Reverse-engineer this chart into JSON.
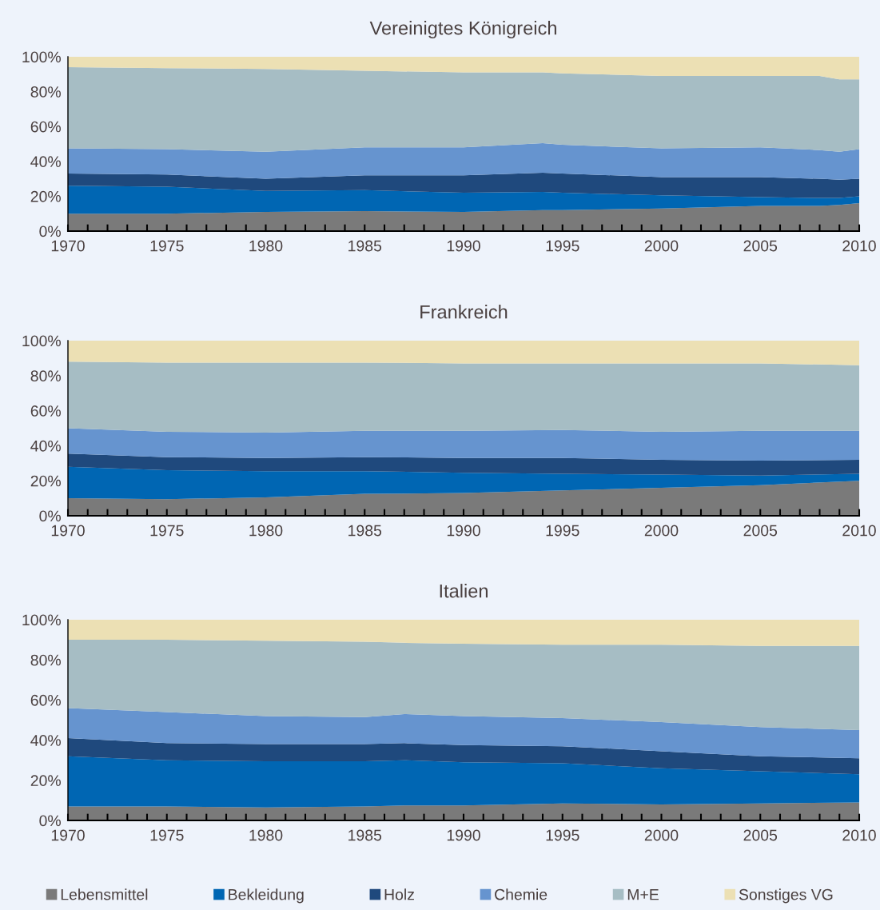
{
  "chart_data": [
    {
      "type": "area",
      "stacked": true,
      "title": "Vereinigtes Königreich",
      "x": [
        1970,
        1975,
        1980,
        1985,
        1990,
        1994,
        1995,
        2000,
        2005,
        2008,
        2009,
        2010
      ],
      "series": [
        {
          "color": "#7a7a7a",
          "values": [
            10,
            10,
            11,
            11.5,
            11,
            12,
            12,
            13,
            14.5,
            14.5,
            15,
            16
          ]
        },
        {
          "color": "#0066b3",
          "values": [
            16,
            15.5,
            12,
            12,
            11,
            10.5,
            10,
            7.5,
            5,
            4.5,
            4,
            4
          ]
        },
        {
          "color": "#1f497d",
          "values": [
            7,
            7,
            7,
            8.5,
            10,
            11,
            11,
            10.5,
            11.5,
            11,
            10.5,
            10
          ]
        },
        {
          "color": "#6694cf",
          "values": [
            14.5,
            14.5,
            15.5,
            16,
            16,
            17,
            16.5,
            16.5,
            17,
            16.5,
            16,
            17
          ]
        },
        {
          "color": "#a6bdc4",
          "values": [
            46.5,
            46.5,
            47.5,
            44,
            43,
            40.5,
            41,
            41.5,
            41,
            42.5,
            41.5,
            40
          ]
        },
        {
          "color": "#ece0b4",
          "values": [
            6,
            6.5,
            7,
            8,
            9,
            9,
            9.5,
            11,
            11,
            11,
            13,
            13
          ]
        }
      ],
      "xlim": [
        1970,
        2010
      ],
      "ylim": [
        0,
        100
      ],
      "xticks": [
        1970,
        {
          "value": 1971,
          "label": null
        },
        {
          "value": 1972,
          "label": null
        },
        {
          "value": 1973,
          "label": null
        },
        {
          "value": 1974,
          "label": null
        },
        1975,
        {
          "value": 1976,
          "label": null
        },
        {
          "value": 1977,
          "label": null
        },
        {
          "value": 1978,
          "label": null
        },
        {
          "value": 1979,
          "label": null
        },
        1980,
        {
          "value": 1981,
          "label": null
        },
        {
          "value": 1982,
          "label": null
        },
        {
          "value": 1983,
          "label": null
        },
        {
          "value": 1984,
          "label": null
        },
        1985,
        {
          "value": 1986,
          "label": null
        },
        {
          "value": 1987,
          "label": null
        },
        {
          "value": 1988,
          "label": null
        },
        {
          "value": 1989,
          "label": null
        },
        1990,
        {
          "value": 1991,
          "label": null
        },
        {
          "value": 1992,
          "label": null
        },
        {
          "value": 1993,
          "label": null
        },
        {
          "value": 1994,
          "label": null
        },
        1995,
        {
          "value": 1996,
          "label": null
        },
        {
          "value": 1997,
          "label": null
        },
        {
          "value": 1998,
          "label": null
        },
        {
          "value": 1999,
          "label": null
        },
        2000,
        {
          "value": 2001,
          "label": null
        },
        {
          "value": 2002,
          "label": null
        },
        {
          "value": 2003,
          "label": null
        },
        {
          "value": 2004,
          "label": null
        },
        2005,
        {
          "value": 2006,
          "label": null
        },
        {
          "value": 2007,
          "label": null
        },
        {
          "value": 2008,
          "label": null
        },
        {
          "value": 2009,
          "label": null
        },
        2010
      ],
      "yticks": [
        {
          "value": 0,
          "label": "0%"
        },
        {
          "value": 20,
          "label": "20%"
        },
        {
          "value": 40,
          "label": "40%"
        },
        {
          "value": 60,
          "label": "60%"
        },
        {
          "value": 80,
          "label": "80%"
        },
        {
          "value": 100,
          "label": "100%"
        }
      ],
      "grid": false,
      "legend": false
    },
    {
      "type": "area",
      "stacked": true,
      "title": "Frankreich",
      "x": [
        1970,
        1975,
        1980,
        1985,
        1990,
        1995,
        2000,
        2005,
        2010
      ],
      "series": [
        {
          "color": "#7a7a7a",
          "values": [
            10,
            9.5,
            10.5,
            12.5,
            13,
            14.5,
            16,
            17.5,
            20
          ]
        },
        {
          "color": "#0066b3",
          "values": [
            18,
            16.5,
            15,
            13,
            11.5,
            9.5,
            7.5,
            5.5,
            4
          ]
        },
        {
          "color": "#1f497d",
          "values": [
            7.5,
            7.5,
            7.5,
            8,
            8.5,
            9,
            8.5,
            8.5,
            8
          ]
        },
        {
          "color": "#6694cf",
          "values": [
            14.5,
            14.5,
            14.5,
            15,
            15.5,
            16,
            16,
            17,
            16.5
          ]
        },
        {
          "color": "#a6bdc4",
          "values": [
            38,
            39.5,
            40,
            39,
            38.5,
            38,
            39,
            38.5,
            37.5
          ]
        },
        {
          "color": "#ece0b4",
          "values": [
            12,
            12.5,
            12.5,
            12.5,
            13,
            13,
            13,
            13,
            14
          ]
        }
      ],
      "xlim": [
        1970,
        2010
      ],
      "ylim": [
        0,
        100
      ],
      "xticks": [
        1970,
        {
          "value": 1971,
          "label": null
        },
        {
          "value": 1972,
          "label": null
        },
        {
          "value": 1973,
          "label": null
        },
        {
          "value": 1974,
          "label": null
        },
        1975,
        {
          "value": 1976,
          "label": null
        },
        {
          "value": 1977,
          "label": null
        },
        {
          "value": 1978,
          "label": null
        },
        {
          "value": 1979,
          "label": null
        },
        1980,
        {
          "value": 1981,
          "label": null
        },
        {
          "value": 1982,
          "label": null
        },
        {
          "value": 1983,
          "label": null
        },
        {
          "value": 1984,
          "label": null
        },
        1985,
        {
          "value": 1986,
          "label": null
        },
        {
          "value": 1987,
          "label": null
        },
        {
          "value": 1988,
          "label": null
        },
        {
          "value": 1989,
          "label": null
        },
        1990,
        {
          "value": 1991,
          "label": null
        },
        {
          "value": 1992,
          "label": null
        },
        {
          "value": 1993,
          "label": null
        },
        {
          "value": 1994,
          "label": null
        },
        1995,
        {
          "value": 1996,
          "label": null
        },
        {
          "value": 1997,
          "label": null
        },
        {
          "value": 1998,
          "label": null
        },
        {
          "value": 1999,
          "label": null
        },
        2000,
        {
          "value": 2001,
          "label": null
        },
        {
          "value": 2002,
          "label": null
        },
        {
          "value": 2003,
          "label": null
        },
        {
          "value": 2004,
          "label": null
        },
        2005,
        {
          "value": 2006,
          "label": null
        },
        {
          "value": 2007,
          "label": null
        },
        {
          "value": 2008,
          "label": null
        },
        {
          "value": 2009,
          "label": null
        },
        2010
      ],
      "yticks": [
        {
          "value": 0,
          "label": "0%"
        },
        {
          "value": 20,
          "label": "20%"
        },
        {
          "value": 40,
          "label": "40%"
        },
        {
          "value": 60,
          "label": "60%"
        },
        {
          "value": 80,
          "label": "80%"
        },
        {
          "value": 100,
          "label": "100%"
        }
      ],
      "grid": false,
      "legend": false
    },
    {
      "type": "area",
      "stacked": true,
      "title": "Italien",
      "x": [
        1970,
        1975,
        1980,
        1985,
        1987,
        1990,
        1995,
        2000,
        2005,
        2010
      ],
      "series": [
        {
          "name": "Lebensmittel",
          "color": "#7a7a7a",
          "values": [
            7,
            7,
            6.5,
            7,
            7.5,
            7.5,
            8.5,
            8,
            8.5,
            9
          ]
        },
        {
          "name": "Bekleidung",
          "color": "#0066b3",
          "values": [
            25,
            23,
            23,
            22.5,
            22.5,
            21.5,
            20,
            18,
            16,
            14
          ]
        },
        {
          "name": "Holz",
          "color": "#1f497d",
          "values": [
            9,
            8.5,
            8.5,
            8.5,
            8.5,
            8.5,
            8.5,
            8.5,
            7.5,
            8
          ]
        },
        {
          "name": "Chemie",
          "color": "#6694cf",
          "values": [
            15,
            15.5,
            14,
            13.5,
            14.5,
            14.5,
            14,
            14.5,
            14.5,
            14
          ]
        },
        {
          "name": "M+E",
          "color": "#a6bdc4",
          "values": [
            34,
            36,
            37.5,
            37.5,
            35.5,
            36,
            36.5,
            38.5,
            40.5,
            42
          ]
        },
        {
          "name": "Sonstiges VG",
          "color": "#ece0b4",
          "values": [
            10,
            10,
            10.5,
            11,
            11.5,
            12,
            12.5,
            12.5,
            13,
            13
          ]
        }
      ],
      "xlim": [
        1970,
        2010
      ],
      "ylim": [
        0,
        100
      ],
      "xticks": [
        1970,
        {
          "value": 1971,
          "label": null
        },
        {
          "value": 1972,
          "label": null
        },
        {
          "value": 1973,
          "label": null
        },
        {
          "value": 1974,
          "label": null
        },
        1975,
        {
          "value": 1976,
          "label": null
        },
        {
          "value": 1977,
          "label": null
        },
        {
          "value": 1978,
          "label": null
        },
        {
          "value": 1979,
          "label": null
        },
        1980,
        {
          "value": 1981,
          "label": null
        },
        {
          "value": 1982,
          "label": null
        },
        {
          "value": 1983,
          "label": null
        },
        {
          "value": 1984,
          "label": null
        },
        1985,
        {
          "value": 1986,
          "label": null
        },
        {
          "value": 1987,
          "label": null
        },
        {
          "value": 1988,
          "label": null
        },
        {
          "value": 1989,
          "label": null
        },
        1990,
        {
          "value": 1991,
          "label": null
        },
        {
          "value": 1992,
          "label": null
        },
        {
          "value": 1993,
          "label": null
        },
        {
          "value": 1994,
          "label": null
        },
        1995,
        {
          "value": 1996,
          "label": null
        },
        {
          "value": 1997,
          "label": null
        },
        {
          "value": 1998,
          "label": null
        },
        {
          "value": 1999,
          "label": null
        },
        2000,
        {
          "value": 2001,
          "label": null
        },
        {
          "value": 2002,
          "label": null
        },
        {
          "value": 2003,
          "label": null
        },
        {
          "value": 2004,
          "label": null
        },
        2005,
        {
          "value": 2006,
          "label": null
        },
        {
          "value": 2007,
          "label": null
        },
        {
          "value": 2008,
          "label": null
        },
        {
          "value": 2009,
          "label": null
        },
        2010
      ],
      "yticks": [
        {
          "value": 0,
          "label": "0%"
        },
        {
          "value": 20,
          "label": "20%"
        },
        {
          "value": 40,
          "label": "40%"
        },
        {
          "value": 60,
          "label": "60%"
        },
        {
          "value": 80,
          "label": "80%"
        },
        {
          "value": 100,
          "label": "100%"
        }
      ],
      "grid": false,
      "legend": "bottom"
    }
  ]
}
